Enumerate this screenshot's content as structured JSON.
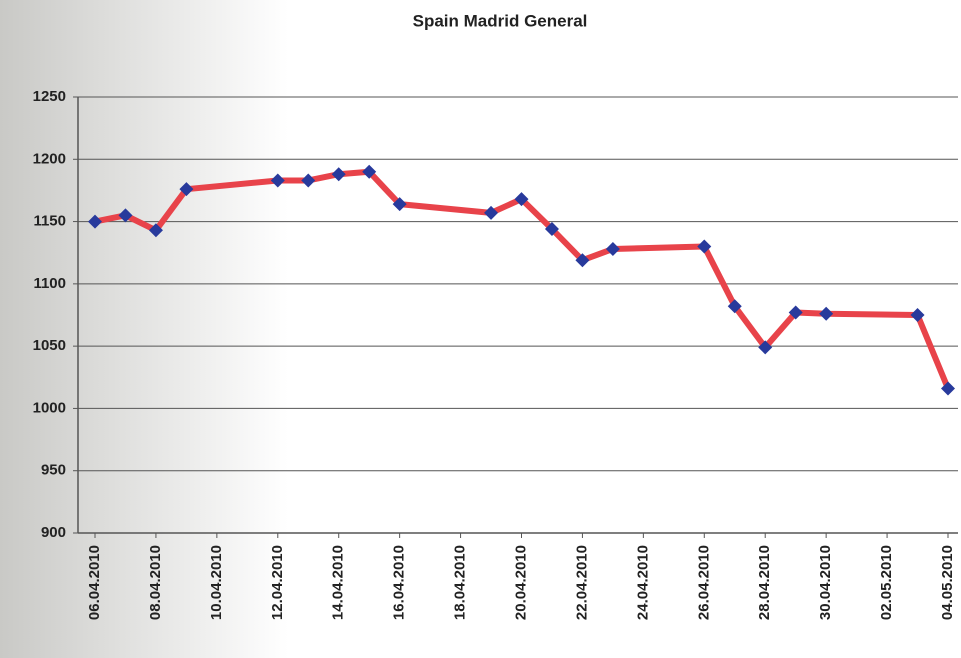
{
  "chart_data": {
    "type": "line",
    "title": "Spain Madrid General",
    "x": [
      "06.04.2010",
      "07.04.2010",
      "08.04.2010",
      "09.04.2010",
      "12.04.2010",
      "13.04.2010",
      "14.04.2010",
      "15.04.2010",
      "16.04.2010",
      "19.04.2010",
      "20.04.2010",
      "21.04.2010",
      "22.04.2010",
      "23.04.2010",
      "26.04.2010",
      "27.04.2010",
      "28.04.2010",
      "29.04.2010",
      "30.04.2010",
      "03.05.2010",
      "04.05.2010"
    ],
    "values": [
      1150,
      1155,
      1143,
      1176,
      1183,
      1183,
      1188,
      1190,
      1164,
      1157,
      1168,
      1144,
      1119,
      1128,
      1130,
      1082,
      1049,
      1077,
      1076,
      1075,
      1016
    ],
    "color": "#e8434a",
    "marker_color": "#283a9c",
    "xlim": [
      "06.04.2010",
      "04.05.2010"
    ],
    "xticks": [
      "06.04.2010",
      "08.04.2010",
      "10.04.2010",
      "12.04.2010",
      "14.04.2010",
      "16.04.2010",
      "18.04.2010",
      "20.04.2010",
      "22.04.2010",
      "24.04.2010",
      "26.04.2010",
      "28.04.2010",
      "30.04.2010",
      "02.05.2010",
      "04.05.2010"
    ],
    "ylim": [
      900,
      1250
    ],
    "yticks": [
      900,
      950,
      1000,
      1050,
      1100,
      1150,
      1200,
      1250
    ],
    "grid": true
  }
}
